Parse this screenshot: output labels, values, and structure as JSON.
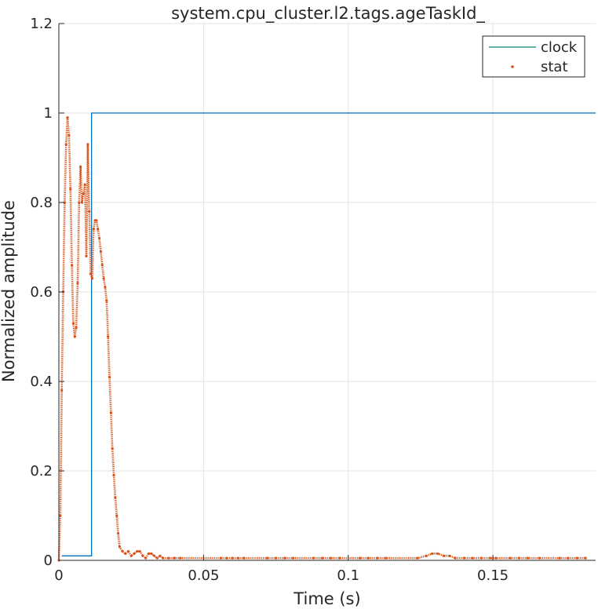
{
  "chart_data": {
    "type": "line",
    "title": "system.cpu_cluster.l2.tags.ageTaskId_",
    "xlabel": "Time (s)",
    "ylabel": "Normalized amplitude",
    "xlim": [
      0,
      0.1855
    ],
    "ylim": [
      0,
      1.2
    ],
    "xticks": [
      0,
      0.05,
      0.1,
      0.15
    ],
    "xtick_labels": [
      "0",
      "0.05",
      "0.1",
      "0.15"
    ],
    "yticks": [
      0,
      0.2,
      0.4,
      0.6,
      0.8,
      1,
      1.2
    ],
    "ytick_labels": [
      "0",
      "0.2",
      "0.4",
      "0.6",
      "0.8",
      "1",
      "1.2"
    ],
    "grid": true,
    "legend_position": "top-right",
    "series": [
      {
        "name": "clock",
        "style": "line",
        "color": "#0072BD",
        "points": [
          [
            0.001,
            0.01
          ],
          [
            0.0113,
            0.01
          ],
          [
            0.0113,
            1.0
          ],
          [
            0.1855,
            1.0
          ]
        ]
      },
      {
        "name": "stat",
        "style": "points",
        "color": "#D95319",
        "points": [
          [
            0.0,
            0.0
          ],
          [
            0.0005,
            0.1
          ],
          [
            0.001,
            0.38
          ],
          [
            0.0015,
            0.6
          ],
          [
            0.002,
            0.8
          ],
          [
            0.0025,
            0.93
          ],
          [
            0.003,
            0.99
          ],
          [
            0.0035,
            0.95
          ],
          [
            0.004,
            0.83
          ],
          [
            0.0045,
            0.66
          ],
          [
            0.005,
            0.53
          ],
          [
            0.0055,
            0.5
          ],
          [
            0.006,
            0.52
          ],
          [
            0.0065,
            0.62
          ],
          [
            0.007,
            0.8
          ],
          [
            0.0075,
            0.88
          ],
          [
            0.008,
            0.8
          ],
          [
            0.0085,
            0.82
          ],
          [
            0.009,
            0.84
          ],
          [
            0.0095,
            0.68
          ],
          [
            0.01,
            0.93
          ],
          [
            0.0105,
            0.78
          ],
          [
            0.011,
            0.64
          ],
          [
            0.0115,
            0.63
          ],
          [
            0.012,
            0.74
          ],
          [
            0.0125,
            0.76
          ],
          [
            0.013,
            0.76
          ],
          [
            0.0135,
            0.74
          ],
          [
            0.014,
            0.72
          ],
          [
            0.0145,
            0.69
          ],
          [
            0.015,
            0.66
          ],
          [
            0.0155,
            0.63
          ],
          [
            0.016,
            0.61
          ],
          [
            0.0165,
            0.58
          ],
          [
            0.017,
            0.5
          ],
          [
            0.0175,
            0.41
          ],
          [
            0.018,
            0.33
          ],
          [
            0.0185,
            0.25
          ],
          [
            0.019,
            0.19
          ],
          [
            0.0195,
            0.14
          ],
          [
            0.02,
            0.1
          ],
          [
            0.0205,
            0.06
          ],
          [
            0.021,
            0.03
          ],
          [
            0.022,
            0.02
          ],
          [
            0.023,
            0.015
          ],
          [
            0.024,
            0.02
          ],
          [
            0.025,
            0.01
          ],
          [
            0.026,
            0.015
          ],
          [
            0.027,
            0.02
          ],
          [
            0.028,
            0.02
          ],
          [
            0.029,
            0.01
          ],
          [
            0.03,
            0.005
          ],
          [
            0.031,
            0.015
          ],
          [
            0.032,
            0.015
          ],
          [
            0.033,
            0.01
          ],
          [
            0.034,
            0.005
          ],
          [
            0.035,
            0.01
          ],
          [
            0.036,
            0.005
          ],
          [
            0.038,
            0.005
          ],
          [
            0.04,
            0.005
          ],
          [
            0.042,
            0.005
          ],
          [
            0.056,
            0.005
          ],
          [
            0.058,
            0.005
          ],
          [
            0.06,
            0.005
          ],
          [
            0.062,
            0.005
          ],
          [
            0.064,
            0.005
          ],
          [
            0.072,
            0.005
          ],
          [
            0.075,
            0.005
          ],
          [
            0.078,
            0.005
          ],
          [
            0.081,
            0.005
          ],
          [
            0.088,
            0.005
          ],
          [
            0.091,
            0.005
          ],
          [
            0.094,
            0.005
          ],
          [
            0.097,
            0.005
          ],
          [
            0.104,
            0.005
          ],
          [
            0.107,
            0.005
          ],
          [
            0.11,
            0.005
          ],
          [
            0.113,
            0.005
          ],
          [
            0.124,
            0.005
          ],
          [
            0.127,
            0.01
          ],
          [
            0.129,
            0.015
          ],
          [
            0.131,
            0.015
          ],
          [
            0.133,
            0.01
          ],
          [
            0.135,
            0.01
          ],
          [
            0.137,
            0.005
          ],
          [
            0.14,
            0.005
          ],
          [
            0.143,
            0.005
          ],
          [
            0.146,
            0.005
          ],
          [
            0.149,
            0.005
          ],
          [
            0.151,
            0.005
          ],
          [
            0.156,
            0.005
          ],
          [
            0.159,
            0.005
          ],
          [
            0.162,
            0.005
          ],
          [
            0.166,
            0.005
          ],
          [
            0.173,
            0.005
          ],
          [
            0.176,
            0.005
          ],
          [
            0.179,
            0.005
          ],
          [
            0.182,
            0.005
          ]
        ]
      }
    ]
  }
}
